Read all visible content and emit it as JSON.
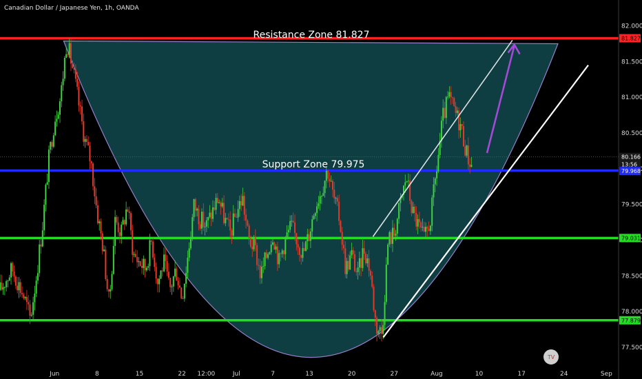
{
  "header": {
    "symbol_title": "Canadian Dollar / Japanese Yen, 1h, OANDA"
  },
  "annotations": {
    "resistance_label": "Resistance Zone 81.827",
    "support_label": "Support Zone 79.975"
  },
  "price_labels": [
    {
      "text": "81.827",
      "value": 81.827,
      "color": "#ff2222",
      "text_color": "#000000"
    },
    {
      "text": "80.166",
      "value": 80.166,
      "color": "#1a1a1a",
      "text_color": "#ffffff"
    },
    {
      "text": "13:56",
      "value": 80.062,
      "color": "#1a1a1a",
      "text_color": "#ffffff"
    },
    {
      "text": "79.968",
      "value": 79.968,
      "color": "#1f2bff",
      "text_color": "#ffffff"
    },
    {
      "text": "79.031",
      "value": 79.031,
      "color": "#22dd22",
      "text_color": "#000000"
    },
    {
      "text": "77.879",
      "value": 77.879,
      "color": "#22dd22",
      "text_color": "#000000"
    }
  ],
  "colors": {
    "background": "#000000",
    "resistance": "#ff2222",
    "support": "#1f2bff",
    "green_level": "#22dd22",
    "bowl_fill": "#0f4248",
    "bowl_stroke": "#9a7fc9",
    "candle_up": "#3fd13f",
    "candle_down": "#e23b2b",
    "channel_line": "#ffffff",
    "arrow": "#a34bd6"
  },
  "chart_data": {
    "type": "candlestick",
    "title": "Canadian Dollar / Japanese Yen, 1h, OANDA",
    "ylim": [
      77.25,
      82.15
    ],
    "y_ticks": [
      "82.000",
      "81.500",
      "81.000",
      "80.500",
      "80.000",
      "79.500",
      "79.000",
      "78.500",
      "78.000",
      "77.500"
    ],
    "y_tick_values": [
      82.0,
      81.5,
      81.0,
      80.5,
      80.0,
      79.5,
      79.0,
      78.5,
      78.0,
      77.5
    ],
    "x_ticks": [
      "Jun",
      "8",
      "15",
      "22",
      "12:00",
      "Jul",
      "7",
      "13",
      "20",
      "27",
      "Aug",
      "10",
      "17",
      "24",
      "Sep"
    ],
    "x_tick_index": [
      0,
      7,
      14,
      21,
      25,
      30,
      36,
      42,
      49,
      56,
      63,
      70,
      77,
      84,
      91
    ],
    "x_range": [
      -4,
      98
    ],
    "levels": {
      "resistance": 81.827,
      "support": 79.975,
      "green_upper": 79.031,
      "green_lower": 77.879
    },
    "path": [
      [
        -4,
        78.3
      ],
      [
        -2,
        78.6
      ],
      [
        0,
        78.2
      ],
      [
        1,
        77.9
      ],
      [
        2,
        78.5
      ],
      [
        3,
        79.2
      ],
      [
        4,
        80.1
      ],
      [
        5,
        80.7
      ],
      [
        6,
        81.0
      ],
      [
        7,
        81.8
      ],
      [
        8,
        81.4
      ],
      [
        9,
        80.9
      ],
      [
        10,
        80.4
      ],
      [
        11,
        80.1
      ],
      [
        12,
        79.4
      ],
      [
        13,
        78.9
      ],
      [
        14,
        78.1
      ],
      [
        15,
        79.3
      ],
      [
        16,
        79.1
      ],
      [
        17,
        79.5
      ],
      [
        18,
        78.8
      ],
      [
        19,
        78.7
      ],
      [
        20,
        78.6
      ],
      [
        21,
        79.0
      ],
      [
        22,
        78.4
      ],
      [
        23,
        78.7
      ],
      [
        24,
        78.3
      ],
      [
        25,
        78.6
      ],
      [
        26,
        78.2
      ],
      [
        27,
        78.8
      ],
      [
        28,
        79.5
      ],
      [
        29,
        79.3
      ],
      [
        30,
        79.2
      ],
      [
        31,
        79.4
      ],
      [
        32,
        79.6
      ],
      [
        33,
        79.3
      ],
      [
        34,
        79.1
      ],
      [
        35,
        79.4
      ],
      [
        36,
        79.6
      ],
      [
        37,
        79.0
      ],
      [
        38,
        78.9
      ],
      [
        39,
        78.5
      ],
      [
        40,
        78.8
      ],
      [
        41,
        79.1
      ],
      [
        42,
        78.7
      ],
      [
        43,
        79.0
      ],
      [
        44,
        79.2
      ],
      [
        45,
        79.0
      ],
      [
        46,
        78.8
      ],
      [
        47,
        79.1
      ],
      [
        48,
        79.5
      ],
      [
        49,
        79.7
      ],
      [
        50,
        80.0
      ],
      [
        51,
        79.6
      ],
      [
        52,
        79.3
      ],
      [
        53,
        78.6
      ],
      [
        54,
        78.8
      ],
      [
        55,
        78.5
      ],
      [
        56,
        78.9
      ],
      [
        57,
        78.6
      ],
      [
        58,
        77.8
      ],
      [
        59,
        77.7
      ],
      [
        60,
        79.0
      ],
      [
        61,
        79.1
      ],
      [
        62,
        79.5
      ],
      [
        63,
        79.9
      ],
      [
        64,
        79.4
      ],
      [
        65,
        79.2
      ],
      [
        66,
        79.0
      ],
      [
        67,
        79.3
      ],
      [
        68,
        80.0
      ],
      [
        69,
        80.7
      ],
      [
        70,
        81.0
      ],
      [
        71,
        80.8
      ],
      [
        72,
        80.6
      ],
      [
        73,
        80.2
      ],
      [
        74,
        80.0
      ]
    ],
    "grid": false,
    "legend": "none"
  },
  "logo": {
    "text": "TV"
  }
}
